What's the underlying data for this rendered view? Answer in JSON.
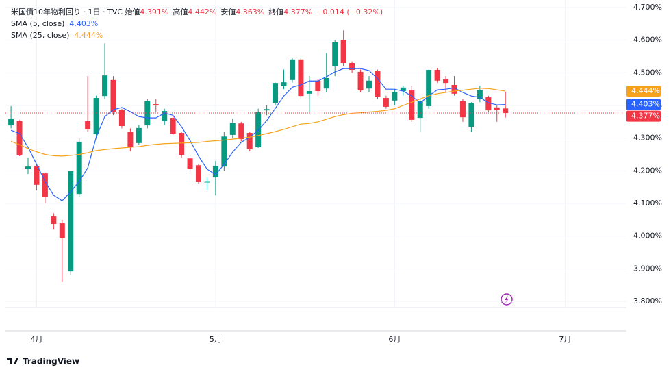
{
  "chart_data": {
    "type": "candlestick",
    "title": "米国債10年物利回り · 1日 · TVC",
    "ohlc_legend": [
      {
        "label": "始値",
        "value": 4.391,
        "value_label": "4.391%"
      },
      {
        "label": "高値",
        "value": 4.442,
        "value_label": "4.442%"
      },
      {
        "label": "安値",
        "value": 4.363,
        "value_label": "4.363%"
      },
      {
        "label": "終値",
        "value": 4.377,
        "value_label": "4.377%"
      }
    ],
    "change": {
      "value": -0.014,
      "percent": -0.32,
      "label": "−0.014 (−0.32%)"
    },
    "up_color": "#089981",
    "down_color": "#f23645",
    "open": [
      4.339,
      4.352,
      4.205,
      4.215,
      4.192,
      4.06,
      4.039,
      3.892,
      4.129,
      4.352,
      4.312,
      4.429,
      4.478,
      4.387,
      4.32,
      4.285,
      4.339,
      4.404,
      4.352,
      4.362,
      4.316,
      4.238,
      4.217,
      4.164,
      4.18,
      4.213,
      4.31,
      4.345,
      4.316,
      4.272,
      4.385,
      4.408,
      4.459,
      4.478,
      4.541,
      4.436,
      4.476,
      4.452,
      4.52,
      4.601,
      4.53,
      4.503,
      4.452,
      4.507,
      4.423,
      4.415,
      4.444,
      4.446,
      4.362,
      4.398,
      4.509,
      4.48,
      4.463,
      4.413,
      4.335,
      4.419,
      4.425,
      4.394,
      4.391
    ],
    "high": [
      4.398,
      4.355,
      4.24,
      4.22,
      4.195,
      4.07,
      4.05,
      4.2,
      4.3,
      4.49,
      4.43,
      4.59,
      4.49,
      4.39,
      4.33,
      4.34,
      4.42,
      4.42,
      4.39,
      4.37,
      4.32,
      4.25,
      4.22,
      4.18,
      4.23,
      4.32,
      4.36,
      4.35,
      4.32,
      4.39,
      4.4,
      4.47,
      4.51,
      4.545,
      4.545,
      4.49,
      4.48,
      4.56,
      4.6,
      4.63,
      4.535,
      4.51,
      4.49,
      4.51,
      4.43,
      4.45,
      4.46,
      4.46,
      4.42,
      4.51,
      4.515,
      4.49,
      4.49,
      4.42,
      4.41,
      4.46,
      4.43,
      4.4,
      4.442
    ],
    "low": [
      4.33,
      4.245,
      4.19,
      4.14,
      4.1,
      4.02,
      3.86,
      3.88,
      4.12,
      4.32,
      4.3,
      4.42,
      4.37,
      4.33,
      4.26,
      4.28,
      4.33,
      4.38,
      4.34,
      4.31,
      4.24,
      4.19,
      4.16,
      4.14,
      4.125,
      4.2,
      4.3,
      4.29,
      4.26,
      4.27,
      4.37,
      4.4,
      4.45,
      4.47,
      4.42,
      4.38,
      4.43,
      4.44,
      4.49,
      4.52,
      4.5,
      4.44,
      4.44,
      4.42,
      4.39,
      4.4,
      4.43,
      4.35,
      4.32,
      4.39,
      4.47,
      4.44,
      4.43,
      4.35,
      4.32,
      4.41,
      4.38,
      4.35,
      4.363
    ],
    "close": [
      4.36,
      4.249,
      4.213,
      4.157,
      4.119,
      4.037,
      3.993,
      4.199,
      4.289,
      4.327,
      4.423,
      4.492,
      4.381,
      4.337,
      4.274,
      4.331,
      4.414,
      4.4,
      4.383,
      4.314,
      4.249,
      4.205,
      4.167,
      4.168,
      4.215,
      4.305,
      4.347,
      4.297,
      4.266,
      4.379,
      4.389,
      4.469,
      4.471,
      4.541,
      4.429,
      4.444,
      4.444,
      4.484,
      4.593,
      4.53,
      4.509,
      4.446,
      4.476,
      4.427,
      4.396,
      4.442,
      4.455,
      4.356,
      4.413,
      4.509,
      4.476,
      4.469,
      4.436,
      4.364,
      4.408,
      4.448,
      4.385,
      4.387,
      4.377
    ],
    "last_close_label": "4.377%",
    "series": [
      {
        "name": "SMA (5, close)",
        "color": "#2962ff",
        "last_value_label": "4.403%",
        "values": [
          4.324,
          4.314,
          4.272,
          4.22,
          4.167,
          4.125,
          4.108,
          4.136,
          4.167,
          4.209,
          4.303,
          4.366,
          4.387,
          4.394,
          4.381,
          4.366,
          4.362,
          4.362,
          4.377,
          4.37,
          4.335,
          4.293,
          4.245,
          4.205,
          4.188,
          4.22,
          4.257,
          4.287,
          4.303,
          4.324,
          4.354,
          4.391,
          4.429,
          4.456,
          4.463,
          4.475,
          4.475,
          4.488,
          4.503,
          4.513,
          4.513,
          4.513,
          4.507,
          4.482,
          4.45,
          4.45,
          4.444,
          4.429,
          4.408,
          4.429,
          4.448,
          4.45,
          4.454,
          4.44,
          4.429,
          4.425,
          4.408,
          4.402,
          4.403
        ]
      },
      {
        "name": "SMA (25, close)",
        "color": "#f7a21b",
        "last_value_label": "4.444%",
        "values": [
          4.29,
          4.28,
          4.268,
          4.258,
          4.25,
          4.246,
          4.245,
          4.247,
          4.25,
          4.255,
          4.262,
          4.265,
          4.268,
          4.27,
          4.272,
          4.274,
          4.278,
          4.281,
          4.283,
          4.284,
          4.285,
          4.286,
          4.287,
          4.29,
          4.292,
          4.294,
          4.297,
          4.3,
          4.303,
          4.308,
          4.314,
          4.32,
          4.327,
          4.335,
          4.343,
          4.345,
          4.35,
          4.358,
          4.366,
          4.372,
          4.376,
          4.378,
          4.38,
          4.382,
          4.385,
          4.39,
          4.4,
          4.41,
          4.42,
          4.43,
          4.436,
          4.44,
          4.444,
          4.447,
          4.45,
          4.453,
          4.452,
          4.448,
          4.444
        ]
      }
    ],
    "xlim": [
      -0.65,
      72.2
    ],
    "xticks": [
      {
        "value": 3,
        "label": "4月"
      },
      {
        "value": 24,
        "label": "5月"
      },
      {
        "value": 45,
        "label": "6月"
      },
      {
        "value": 65,
        "label": "7月"
      }
    ],
    "ylim": [
      3.8,
      4.7
    ],
    "yticks": [
      {
        "value": 3.8,
        "label": "3.800%"
      },
      {
        "value": 3.9,
        "label": "3.900%"
      },
      {
        "value": 4.0,
        "label": "4.000%"
      },
      {
        "value": 4.1,
        "label": "4.100%"
      },
      {
        "value": 4.2,
        "label": "4.200%"
      },
      {
        "value": 4.3,
        "label": "4.300%"
      },
      {
        "value": 4.4,
        "label": "4.400%"
      },
      {
        "value": 4.5,
        "label": "4.500%"
      },
      {
        "value": 4.6,
        "label": "4.600%"
      },
      {
        "value": 4.7,
        "label": "4.700%"
      }
    ],
    "grid": true,
    "branding": "TradingView"
  }
}
